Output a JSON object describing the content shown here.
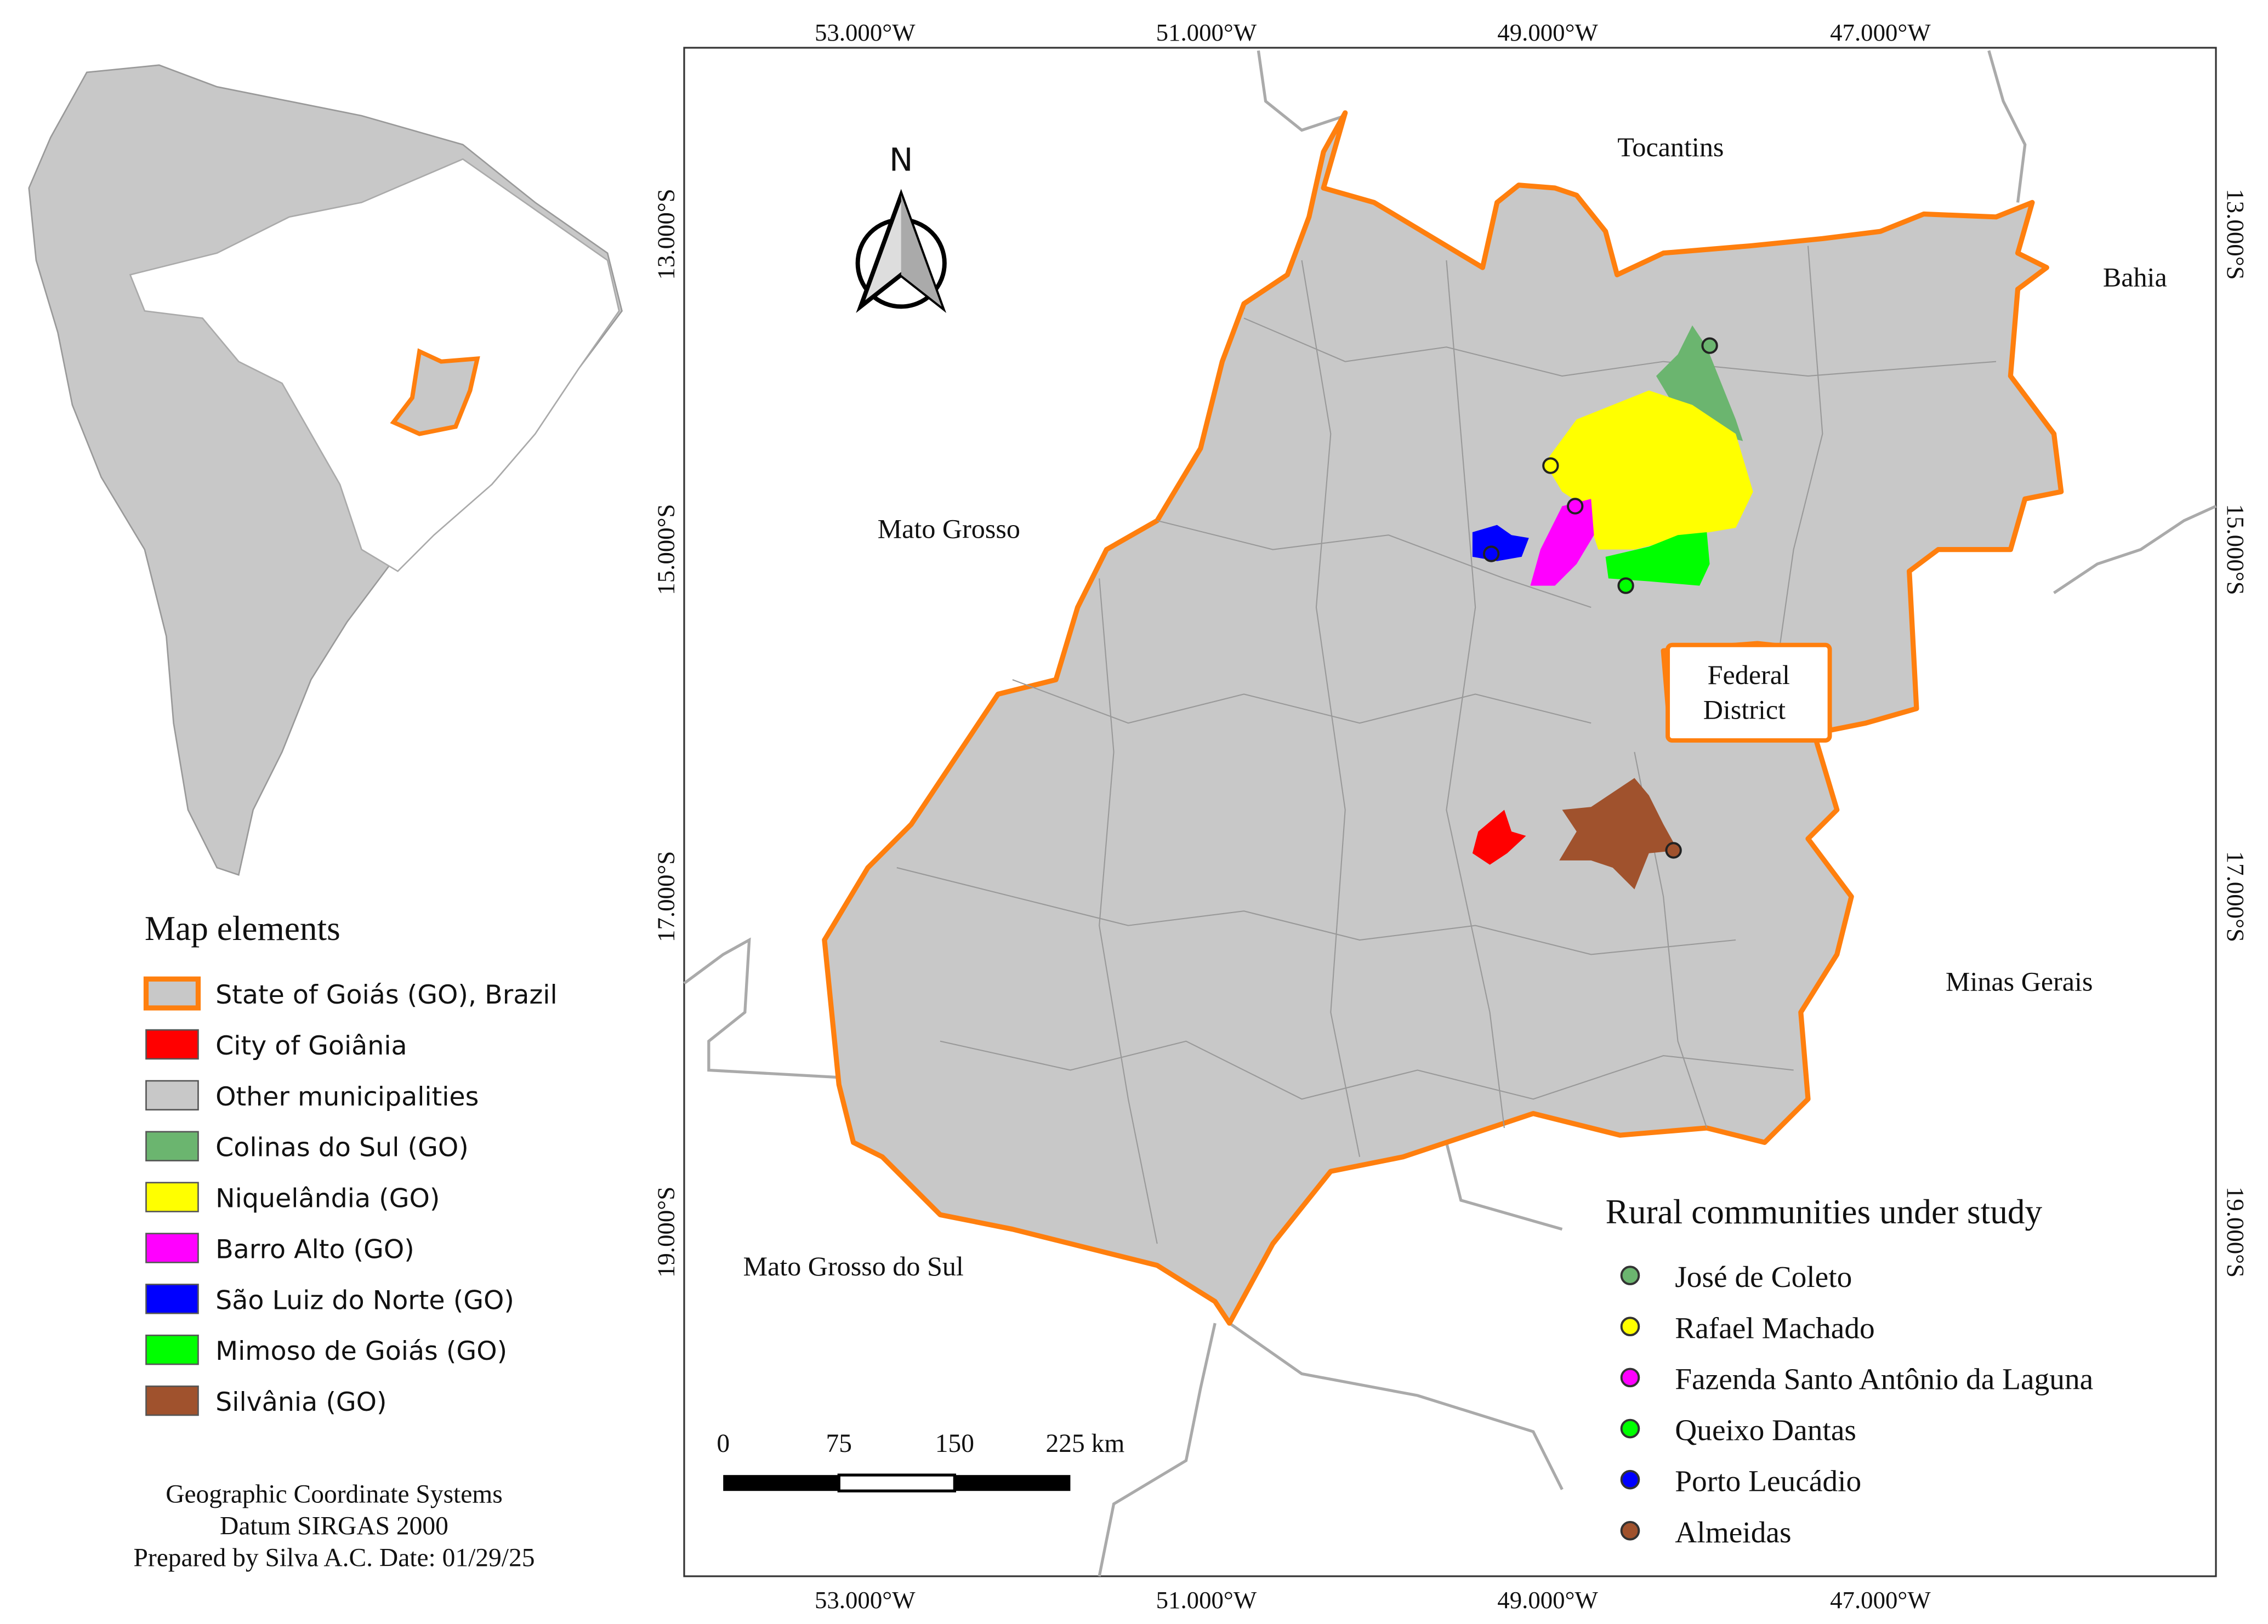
{
  "graticule": {
    "top": [
      "53.000°W",
      "51.000°W",
      "49.000°W",
      "47.000°W"
    ],
    "bottom": [
      "53.000°W",
      "51.000°W",
      "49.000°W",
      "47.000°W"
    ],
    "left": [
      "13.000°S",
      "15.000°S",
      "17.000°S",
      "19.000°S"
    ],
    "right": [
      "13.000°S",
      "15.000°S",
      "17.000°S",
      "19.000°S"
    ]
  },
  "north_arrow": "N",
  "regions": {
    "tocantins": "Tocantins",
    "bahia": "Bahia",
    "mato_grosso": "Mato Grosso",
    "federal_district": [
      "Federal",
      "District"
    ],
    "minas_gerais": "Minas Gerais",
    "mato_grosso_do_sul": "Mato Grosso do Sul"
  },
  "legend": {
    "title": "Map elements",
    "items": [
      {
        "label": "State of Goiás (GO), Brazil",
        "color": "#c8c8c8",
        "border": "#ff7f0e"
      },
      {
        "label": "City of Goiânia",
        "color": "#ff0000"
      },
      {
        "label": "Other municipalities",
        "color": "#c8c8c8"
      },
      {
        "label": "Colinas do Sul (GO)",
        "color": "#6bb56f"
      },
      {
        "label": "Niquelândia (GO)",
        "color": "#ffff00"
      },
      {
        "label": "Barro Alto (GO)",
        "color": "#ff00ff"
      },
      {
        "label": "São Luiz do Norte (GO)",
        "color": "#0000ff"
      },
      {
        "label": "Mimoso de Goiás (GO)",
        "color": "#00ff00"
      },
      {
        "label": "Silvânia (GO)",
        "color": "#a0522d"
      }
    ]
  },
  "communities": {
    "title": "Rural communities under study",
    "items": [
      {
        "label": "José de Coleto",
        "color": "#6bb56f"
      },
      {
        "label": "Rafael Machado",
        "color": "#ffff00"
      },
      {
        "label": "Fazenda Santo Antônio da Laguna",
        "color": "#ff00ff"
      },
      {
        "label": "Queixo Dantas",
        "color": "#00ff00"
      },
      {
        "label": "Porto Leucádio",
        "color": "#0000ff"
      },
      {
        "label": "Almeidas",
        "color": "#a0522d"
      }
    ]
  },
  "scale_bar": [
    "0",
    "75",
    "150",
    "225 km"
  ],
  "credits": [
    "Geographic Coordinate Systems",
    "Datum SIRGAS 2000",
    "Prepared by Silva A.C. Date: 01/29/25"
  ]
}
